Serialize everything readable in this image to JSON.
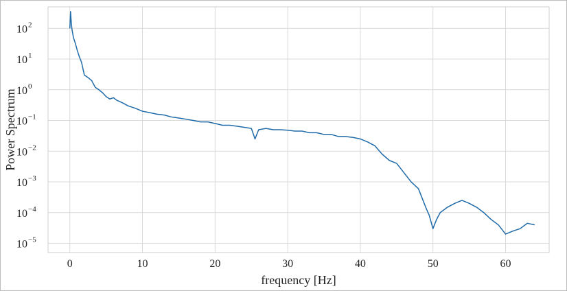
{
  "chart_data": {
    "type": "line",
    "title": "",
    "xlabel": "frequency [Hz]",
    "ylabel": "Power Spectrum",
    "xlim": [
      -3,
      66
    ],
    "ylim": [
      5e-06,
      500
    ],
    "yscale": "log",
    "grid": true,
    "x_ticks": [
      0,
      10,
      20,
      30,
      40,
      50,
      60
    ],
    "y_ticks": [
      {
        "value": 1e-05,
        "base": "10",
        "exp": "−5"
      },
      {
        "value": 0.0001,
        "base": "10",
        "exp": "−4"
      },
      {
        "value": 0.001,
        "base": "10",
        "exp": "−3"
      },
      {
        "value": 0.01,
        "base": "10",
        "exp": "−2"
      },
      {
        "value": 0.1,
        "base": "10",
        "exp": "−1"
      },
      {
        "value": 1,
        "base": "10",
        "exp": "0"
      },
      {
        "value": 10,
        "base": "10",
        "exp": "1"
      },
      {
        "value": 100,
        "base": "10",
        "exp": "2"
      }
    ],
    "series": [
      {
        "color": "#1f6aa8",
        "x": [
          0,
          0.1,
          0.2,
          0.3,
          0.5,
          0.8,
          1,
          1.3,
          1.6,
          2,
          2.5,
          3,
          3.5,
          4,
          4.5,
          5,
          5.5,
          6,
          6.5,
          7,
          7.5,
          8,
          9,
          10,
          11,
          12,
          13,
          14,
          15,
          16,
          17,
          18,
          19,
          20,
          21,
          22,
          23,
          24,
          25,
          25.5,
          26,
          27,
          28,
          29,
          30,
          31,
          32,
          33,
          34,
          35,
          36,
          37,
          38,
          39,
          40,
          41,
          42,
          43,
          44,
          45,
          46,
          47,
          48,
          48.5,
          49,
          49.5,
          50,
          50.5,
          51,
          52,
          53,
          54,
          55,
          56,
          57,
          58,
          59,
          60,
          61,
          62,
          63,
          64
        ],
        "values": [
          100,
          350,
          150,
          90,
          50,
          30,
          20,
          12,
          8,
          3,
          2.5,
          2,
          1.2,
          1,
          0.8,
          0.6,
          0.5,
          0.55,
          0.45,
          0.4,
          0.35,
          0.3,
          0.25,
          0.2,
          0.18,
          0.16,
          0.15,
          0.13,
          0.12,
          0.11,
          0.1,
          0.09,
          0.09,
          0.08,
          0.07,
          0.07,
          0.065,
          0.06,
          0.055,
          0.025,
          0.05,
          0.055,
          0.05,
          0.05,
          0.048,
          0.045,
          0.045,
          0.04,
          0.04,
          0.035,
          0.035,
          0.03,
          0.03,
          0.028,
          0.025,
          0.02,
          0.015,
          0.008,
          0.005,
          0.004,
          0.002,
          0.001,
          0.0006,
          0.0003,
          0.00015,
          8e-05,
          3e-05,
          6e-05,
          0.0001,
          0.00015,
          0.0002,
          0.00025,
          0.0002,
          0.00015,
          0.0001,
          6e-05,
          4e-05,
          2e-05,
          2.5e-05,
          3e-05,
          4.5e-05,
          4e-05
        ]
      }
    ]
  }
}
